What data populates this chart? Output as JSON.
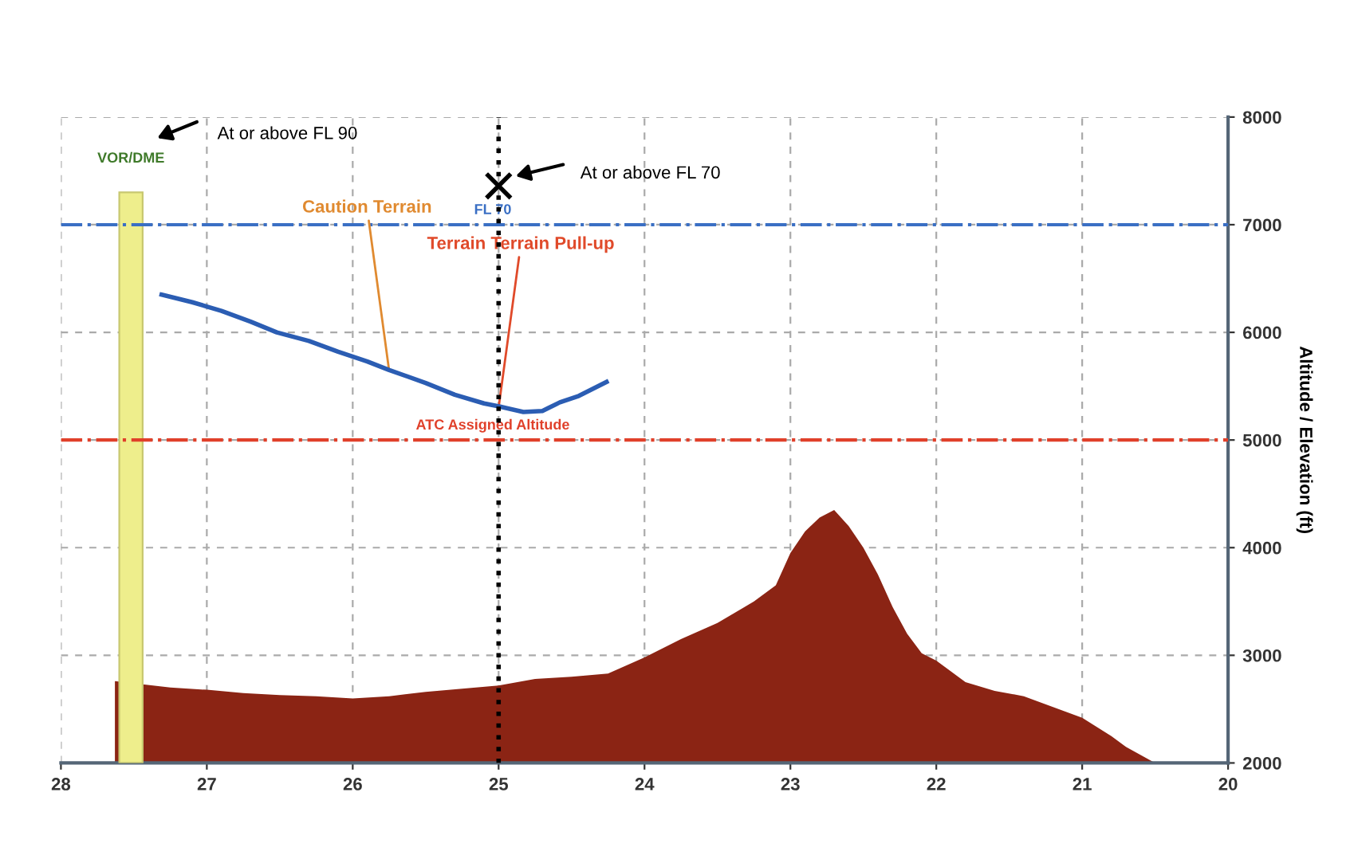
{
  "chart_data": {
    "type": "area",
    "ylabel": "Altitude / Elevation (ft)",
    "xlim": [
      28,
      20
    ],
    "ylim": [
      2000,
      8000
    ],
    "xticks": [
      28,
      27,
      26,
      25,
      24,
      23,
      22,
      21,
      20
    ],
    "yticks": [
      2000,
      3000,
      4000,
      5000,
      6000,
      7000,
      8000
    ],
    "grid": true,
    "series": [
      {
        "color": "#8b2414",
        "x": [
          27.63,
          27.63,
          27.25,
          27,
          26.75,
          26.5,
          26.25,
          26,
          25.75,
          25.5,
          25.25,
          25,
          24.75,
          24.5,
          24.25,
          24,
          23.75,
          23.5,
          23.25,
          23.1,
          23,
          22.9,
          22.8,
          22.7,
          22.6,
          22.5,
          22.4,
          22.3,
          22.2,
          22.1,
          22,
          21.8,
          21.6,
          21.4,
          21.2,
          21,
          20.8,
          20.7,
          20.5
        ],
        "values": [
          2000,
          2760,
          2700,
          2680,
          2650,
          2630,
          2620,
          2600,
          2620,
          2660,
          2690,
          2720,
          2780,
          2800,
          2830,
          2980,
          3150,
          3300,
          3500,
          3650,
          3950,
          4150,
          4280,
          4350,
          4200,
          4000,
          3750,
          3450,
          3200,
          3020,
          2950,
          2750,
          2670,
          2620,
          2520,
          2420,
          2250,
          2150,
          2000
        ]
      },
      {
        "type": "line",
        "color": "#2b5db3",
        "x": [
          27.31,
          27.1,
          26.9,
          26.7,
          26.52,
          26.3,
          26.1,
          25.9,
          25.75,
          25.5,
          25.3,
          25.1,
          24.99,
          24.83,
          24.7,
          24.58,
          24.45,
          24.26
        ],
        "values": [
          6350,
          6280,
          6200,
          6100,
          6000,
          5920,
          5820,
          5730,
          5650,
          5530,
          5420,
          5340,
          5310,
          5260,
          5270,
          5350,
          5410,
          5540
        ]
      },
      {
        "type": "bar",
        "name": "VOR/DME",
        "color": "#eeee8c",
        "x": [
          27.52
        ],
        "values": [
          7300
        ]
      },
      {
        "type": "scatter",
        "marker": "cross",
        "color": "#000000",
        "x": [
          25
        ],
        "values": [
          7360
        ]
      }
    ],
    "ref_lines": [
      {
        "axis": "y",
        "value": 7000,
        "label": "FL 70",
        "color": "#3a6fc4",
        "line_style": "dashdot"
      },
      {
        "axis": "y",
        "value": 5000,
        "label": "ATC Assigned Altitude",
        "color": "#e0402a",
        "line_style": "dashdot"
      },
      {
        "axis": "x",
        "value": 25,
        "color": "#000000",
        "line_style": "dotted"
      }
    ],
    "annotations": [
      "At or above FL 90",
      "At or above FL 70",
      {
        "text": "Caution Terrain",
        "x": 25.75,
        "y": 5640
      },
      {
        "text": "Terrain Terrain Pull-up",
        "x": 25.0,
        "y": 5300
      }
    ]
  }
}
